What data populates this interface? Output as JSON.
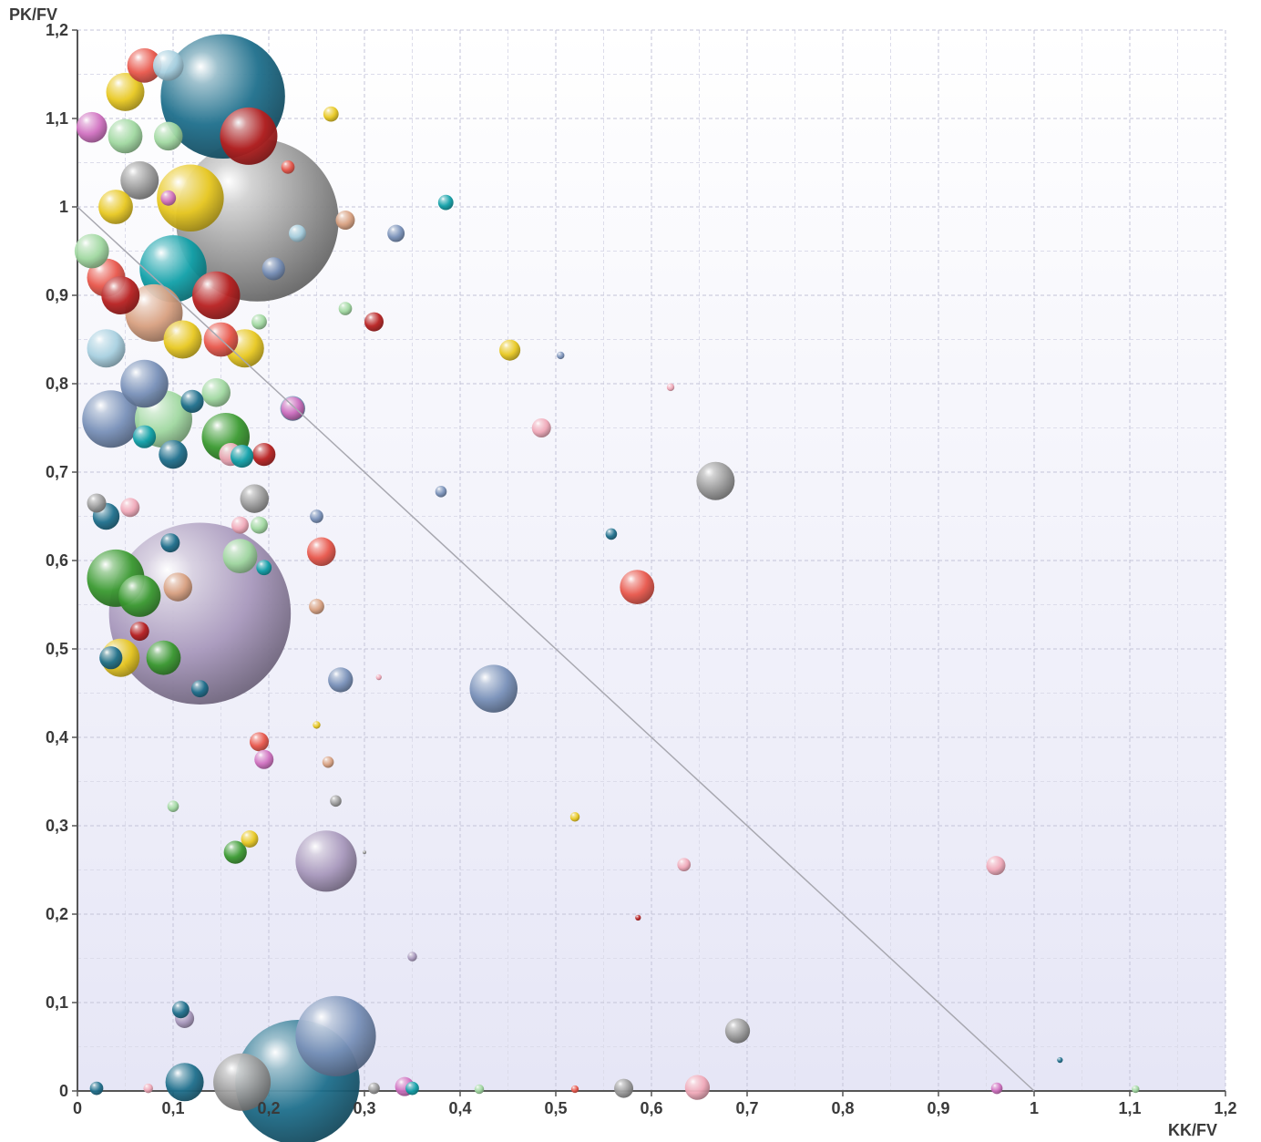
{
  "chart_data": {
    "type": "scatter",
    "variant": "bubble",
    "title": "",
    "xlabel": "KK/FV",
    "ylabel": "PK/FV",
    "xlim": [
      0,
      1.2
    ],
    "ylim": [
      0,
      1.2
    ],
    "x_ticks": [
      "0",
      "0,1",
      "0,2",
      "0,3",
      "0,4",
      "0,5",
      "0,6",
      "0,7",
      "0,8",
      "0,9",
      "1",
      "1,1",
      "1,2"
    ],
    "y_ticks": [
      "0",
      "0,1",
      "0,2",
      "0,3",
      "0,4",
      "0,5",
      "0,6",
      "0,7",
      "0,8",
      "0,9",
      "1",
      "1,1",
      "1,2"
    ],
    "grid": true,
    "legend": "none",
    "reference_line": {
      "x": [
        0,
        1
      ],
      "y": [
        1,
        0
      ]
    },
    "colors": {
      "blue": "#1e6f8c",
      "gray": "#9a9a9a",
      "purple": "#a898bc",
      "red": "#b82020",
      "salmon": "#e8564a",
      "yellow": "#e8c820",
      "green": "#3a9a30",
      "lightgreen": "#a0d8a0",
      "pink": "#f0a8b8",
      "steelblue": "#7890b8",
      "teal": "#10a0a8",
      "orange": "#d8a080",
      "magenta": "#d070c0",
      "lightblue": "#a8d0e0"
    },
    "points": [
      {
        "x": 0.152,
        "y": 1.125,
        "size": 0.065,
        "color": "blue"
      },
      {
        "x": 0.188,
        "y": 0.985,
        "size": 0.085,
        "color": "gray"
      },
      {
        "x": 0.128,
        "y": 0.54,
        "size": 0.095,
        "color": "purple"
      },
      {
        "x": 0.118,
        "y": 1.01,
        "size": 0.035,
        "color": "yellow"
      },
      {
        "x": 0.179,
        "y": 1.08,
        "size": 0.03,
        "color": "red"
      },
      {
        "x": 0.27,
        "y": 0.062,
        "size": 0.042,
        "color": "steelblue"
      },
      {
        "x": 0.23,
        "y": 0.01,
        "size": 0.065,
        "color": "blue"
      },
      {
        "x": 0.172,
        "y": 0.01,
        "size": 0.03,
        "color": "gray"
      },
      {
        "x": 0.112,
        "y": 0.01,
        "size": 0.02,
        "color": "blue"
      },
      {
        "x": 0.04,
        "y": 0.58,
        "size": 0.03,
        "color": "green"
      },
      {
        "x": 0.065,
        "y": 0.56,
        "size": 0.022,
        "color": "green"
      },
      {
        "x": 0.035,
        "y": 0.76,
        "size": 0.03,
        "color": "steelblue"
      },
      {
        "x": 0.1,
        "y": 0.93,
        "size": 0.035,
        "color": "teal"
      },
      {
        "x": 0.145,
        "y": 0.9,
        "size": 0.025,
        "color": "red"
      },
      {
        "x": 0.09,
        "y": 0.76,
        "size": 0.03,
        "color": "lightgreen"
      },
      {
        "x": 0.07,
        "y": 0.8,
        "size": 0.025,
        "color": "steelblue"
      },
      {
        "x": 0.155,
        "y": 0.74,
        "size": 0.025,
        "color": "green"
      },
      {
        "x": 0.08,
        "y": 0.88,
        "size": 0.03,
        "color": "orange"
      },
      {
        "x": 0.05,
        "y": 1.13,
        "size": 0.02,
        "color": "yellow"
      },
      {
        "x": 0.07,
        "y": 1.16,
        "size": 0.018,
        "color": "salmon"
      },
      {
        "x": 0.095,
        "y": 1.16,
        "size": 0.016,
        "color": "lightblue"
      },
      {
        "x": 0.05,
        "y": 1.08,
        "size": 0.018,
        "color": "lightgreen"
      },
      {
        "x": 0.015,
        "y": 1.09,
        "size": 0.016,
        "color": "magenta"
      },
      {
        "x": 0.095,
        "y": 1.08,
        "size": 0.015,
        "color": "lightgreen"
      },
      {
        "x": 0.175,
        "y": 0.84,
        "size": 0.02,
        "color": "yellow"
      },
      {
        "x": 0.15,
        "y": 0.85,
        "size": 0.018,
        "color": "salmon"
      },
      {
        "x": 0.11,
        "y": 0.85,
        "size": 0.02,
        "color": "yellow"
      },
      {
        "x": 0.3,
        "y": 0.27,
        "size": 0.0,
        "color": "gray"
      },
      {
        "x": 0.26,
        "y": 0.26,
        "size": 0.032,
        "color": "purple"
      },
      {
        "x": 0.435,
        "y": 0.455,
        "size": 0.025,
        "color": "steelblue"
      },
      {
        "x": 0.667,
        "y": 0.69,
        "size": 0.02,
        "color": "gray"
      },
      {
        "x": 0.585,
        "y": 0.57,
        "size": 0.018,
        "color": "salmon"
      },
      {
        "x": 0.69,
        "y": 0.068,
        "size": 0.013,
        "color": "gray"
      },
      {
        "x": 0.96,
        "y": 0.255,
        "size": 0.01,
        "color": "pink"
      },
      {
        "x": 0.485,
        "y": 0.75,
        "size": 0.01,
        "color": "pink"
      },
      {
        "x": 0.452,
        "y": 0.838,
        "size": 0.011,
        "color": "yellow"
      },
      {
        "x": 0.31,
        "y": 0.87,
        "size": 0.01,
        "color": "red"
      },
      {
        "x": 0.385,
        "y": 1.005,
        "size": 0.008,
        "color": "teal"
      },
      {
        "x": 0.333,
        "y": 0.97,
        "size": 0.009,
        "color": "steelblue"
      },
      {
        "x": 0.28,
        "y": 0.885,
        "size": 0.007,
        "color": "lightgreen"
      },
      {
        "x": 0.265,
        "y": 1.105,
        "size": 0.008,
        "color": "yellow"
      },
      {
        "x": 0.225,
        "y": 0.772,
        "size": 0.013,
        "color": "steelblue"
      },
      {
        "x": 0.225,
        "y": 0.772,
        "size": 0.012,
        "color": "magenta"
      },
      {
        "x": 0.255,
        "y": 0.61,
        "size": 0.015,
        "color": "salmon"
      },
      {
        "x": 0.275,
        "y": 0.465,
        "size": 0.013,
        "color": "steelblue"
      },
      {
        "x": 0.19,
        "y": 0.395,
        "size": 0.01,
        "color": "salmon"
      },
      {
        "x": 0.195,
        "y": 0.375,
        "size": 0.01,
        "color": "magenta"
      },
      {
        "x": 0.165,
        "y": 0.27,
        "size": 0.012,
        "color": "green"
      },
      {
        "x": 0.18,
        "y": 0.285,
        "size": 0.009,
        "color": "yellow"
      },
      {
        "x": 0.195,
        "y": 0.72,
        "size": 0.012,
        "color": "red"
      },
      {
        "x": 0.185,
        "y": 0.67,
        "size": 0.015,
        "color": "gray"
      },
      {
        "x": 0.16,
        "y": 0.72,
        "size": 0.012,
        "color": "pink"
      },
      {
        "x": 0.172,
        "y": 0.718,
        "size": 0.012,
        "color": "teal"
      },
      {
        "x": 0.045,
        "y": 0.49,
        "size": 0.02,
        "color": "yellow"
      },
      {
        "x": 0.035,
        "y": 0.49,
        "size": 0.012,
        "color": "blue"
      },
      {
        "x": 0.09,
        "y": 0.49,
        "size": 0.018,
        "color": "green"
      },
      {
        "x": 0.065,
        "y": 0.52,
        "size": 0.01,
        "color": "red"
      },
      {
        "x": 0.17,
        "y": 0.605,
        "size": 0.018,
        "color": "lightgreen"
      },
      {
        "x": 0.105,
        "y": 0.57,
        "size": 0.015,
        "color": "orange"
      },
      {
        "x": 0.097,
        "y": 0.62,
        "size": 0.01,
        "color": "blue"
      },
      {
        "x": 0.03,
        "y": 0.65,
        "size": 0.014,
        "color": "blue"
      },
      {
        "x": 0.02,
        "y": 0.665,
        "size": 0.01,
        "color": "gray"
      },
      {
        "x": 0.065,
        "y": 1.03,
        "size": 0.02,
        "color": "gray"
      },
      {
        "x": 0.04,
        "y": 1.0,
        "size": 0.018,
        "color": "yellow"
      },
      {
        "x": 0.015,
        "y": 0.95,
        "size": 0.018,
        "color": "lightgreen"
      },
      {
        "x": 0.03,
        "y": 0.92,
        "size": 0.02,
        "color": "salmon"
      },
      {
        "x": 0.045,
        "y": 0.9,
        "size": 0.02,
        "color": "red"
      },
      {
        "x": 0.03,
        "y": 0.84,
        "size": 0.02,
        "color": "lightblue"
      },
      {
        "x": 0.12,
        "y": 0.78,
        "size": 0.012,
        "color": "blue"
      },
      {
        "x": 0.145,
        "y": 0.79,
        "size": 0.015,
        "color": "lightgreen"
      },
      {
        "x": 0.1,
        "y": 0.72,
        "size": 0.015,
        "color": "blue"
      },
      {
        "x": 0.07,
        "y": 0.74,
        "size": 0.012,
        "color": "teal"
      },
      {
        "x": 0.055,
        "y": 0.66,
        "size": 0.01,
        "color": "pink"
      },
      {
        "x": 0.19,
        "y": 0.64,
        "size": 0.009,
        "color": "lightgreen"
      },
      {
        "x": 0.17,
        "y": 0.64,
        "size": 0.009,
        "color": "pink"
      },
      {
        "x": 0.195,
        "y": 0.592,
        "size": 0.008,
        "color": "teal"
      },
      {
        "x": 0.19,
        "y": 0.87,
        "size": 0.008,
        "color": "lightgreen"
      },
      {
        "x": 0.205,
        "y": 0.93,
        "size": 0.012,
        "color": "steelblue"
      },
      {
        "x": 0.22,
        "y": 1.045,
        "size": 0.007,
        "color": "salmon"
      },
      {
        "x": 0.23,
        "y": 0.97,
        "size": 0.009,
        "color": "lightblue"
      },
      {
        "x": 0.28,
        "y": 0.985,
        "size": 0.01,
        "color": "orange"
      },
      {
        "x": 0.095,
        "y": 1.01,
        "size": 0.008,
        "color": "magenta"
      },
      {
        "x": 0.128,
        "y": 0.455,
        "size": 0.009,
        "color": "blue"
      },
      {
        "x": 0.25,
        "y": 0.65,
        "size": 0.007,
        "color": "steelblue"
      },
      {
        "x": 0.25,
        "y": 0.548,
        "size": 0.008,
        "color": "orange"
      },
      {
        "x": 0.27,
        "y": 0.328,
        "size": 0.006,
        "color": "gray"
      },
      {
        "x": 0.262,
        "y": 0.372,
        "size": 0.006,
        "color": "orange"
      },
      {
        "x": 0.1,
        "y": 0.322,
        "size": 0.006,
        "color": "lightgreen"
      },
      {
        "x": 0.108,
        "y": 0.092,
        "size": 0.009,
        "color": "blue"
      },
      {
        "x": 0.112,
        "y": 0.082,
        "size": 0.01,
        "color": "purple"
      },
      {
        "x": 0.35,
        "y": 0.152,
        "size": 0.005,
        "color": "purple"
      },
      {
        "x": 0.38,
        "y": 0.678,
        "size": 0.006,
        "color": "steelblue"
      },
      {
        "x": 0.558,
        "y": 0.63,
        "size": 0.006,
        "color": "blue"
      },
      {
        "x": 0.634,
        "y": 0.256,
        "size": 0.007,
        "color": "pink"
      },
      {
        "x": 0.52,
        "y": 0.31,
        "size": 0.005,
        "color": "yellow"
      },
      {
        "x": 0.586,
        "y": 0.196,
        "size": 0.003,
        "color": "red"
      },
      {
        "x": 0.62,
        "y": 0.796,
        "size": 0.004,
        "color": "pink"
      },
      {
        "x": 0.505,
        "y": 0.832,
        "size": 0.004,
        "color": "steelblue"
      },
      {
        "x": 0.315,
        "y": 0.468,
        "size": 0.003,
        "color": "pink"
      },
      {
        "x": 0.25,
        "y": 0.414,
        "size": 0.004,
        "color": "yellow"
      },
      {
        "x": 1.027,
        "y": 0.035,
        "size": 0.003,
        "color": "blue"
      },
      {
        "x": 0.342,
        "y": 0.005,
        "size": 0.01,
        "color": "magenta"
      },
      {
        "x": 0.35,
        "y": 0.003,
        "size": 0.007,
        "color": "teal"
      },
      {
        "x": 0.571,
        "y": 0.003,
        "size": 0.01,
        "color": "gray"
      },
      {
        "x": 0.648,
        "y": 0.004,
        "size": 0.013,
        "color": "pink"
      },
      {
        "x": 0.961,
        "y": 0.003,
        "size": 0.006,
        "color": "magenta"
      },
      {
        "x": 1.106,
        "y": 0.002,
        "size": 0.004,
        "color": "lightgreen"
      },
      {
        "x": 0.42,
        "y": 0.002,
        "size": 0.005,
        "color": "lightgreen"
      },
      {
        "x": 0.52,
        "y": 0.002,
        "size": 0.004,
        "color": "salmon"
      },
      {
        "x": 0.02,
        "y": 0.003,
        "size": 0.007,
        "color": "blue"
      },
      {
        "x": 0.074,
        "y": 0.003,
        "size": 0.005,
        "color": "pink"
      },
      {
        "x": 0.31,
        "y": 0.003,
        "size": 0.006,
        "color": "gray"
      }
    ]
  }
}
